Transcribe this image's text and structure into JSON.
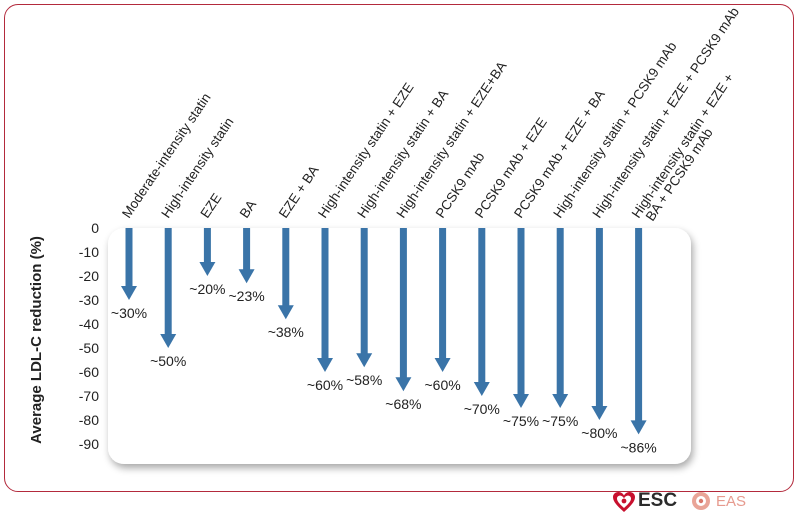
{
  "chart_data": {
    "type": "bar",
    "ylabel": "Average LDL-C reduction (%)",
    "ylim": [
      0,
      -90
    ],
    "yticks": [
      0,
      -10,
      -20,
      -30,
      -40,
      -50,
      -60,
      -70,
      -80,
      -90
    ],
    "categories": [
      "Moderate-intensity statin",
      "High-intensity statin",
      "EZE",
      "BA",
      "EZE + BA",
      "High-intensity statin + EZE",
      "High-intensity statin + BA",
      "High-intensity statin + EZE+BA",
      "PCSK9 mAb",
      "PCSK9 mAb + EZE",
      "PCSK9 mAb + EZE + BA",
      "High-intensity statin + PCSK9 mAb",
      "High-intensity statin + EZE + PCSK9 mAb",
      "High-intensity statin + EZE + BA + PCSK9 mAb"
    ],
    "category_lines": [
      [
        "Moderate-intensity statin"
      ],
      [
        "High-intensity statin"
      ],
      [
        "EZE"
      ],
      [
        "BA"
      ],
      [
        "EZE + BA"
      ],
      [
        "High-intensity statin + EZE"
      ],
      [
        "High-intensity statin + BA"
      ],
      [
        "High-intensity statin + EZE+BA"
      ],
      [
        "PCSK9 mAb"
      ],
      [
        "PCSK9 mAb + EZE"
      ],
      [
        "PCSK9 mAb + EZE + BA"
      ],
      [
        "High-intensity statin + PCSK9 mAb"
      ],
      [
        "High-intensity statin + EZE + PCSK9 mAb"
      ],
      [
        "High-intensity statin + EZE +",
        "BA + PCSK9 mAb"
      ]
    ],
    "values": [
      -30,
      -50,
      -20,
      -23,
      -38,
      -60,
      -58,
      -68,
      -60,
      -70,
      -75,
      -75,
      -80,
      -86
    ],
    "data_labels": [
      "~30%",
      "~50%",
      "~20%",
      "~23%",
      "~38%",
      "~60%",
      "~58%",
      "~68%",
      "~60%",
      "~70%",
      "~75%",
      "~75%",
      "~80%",
      "~86%"
    ],
    "colors": {
      "arrow": "#3a74a8",
      "frame": "#b32a3c",
      "panel": "#ffffff"
    }
  },
  "logos": {
    "esc": "ESC",
    "eas": "EAS"
  }
}
